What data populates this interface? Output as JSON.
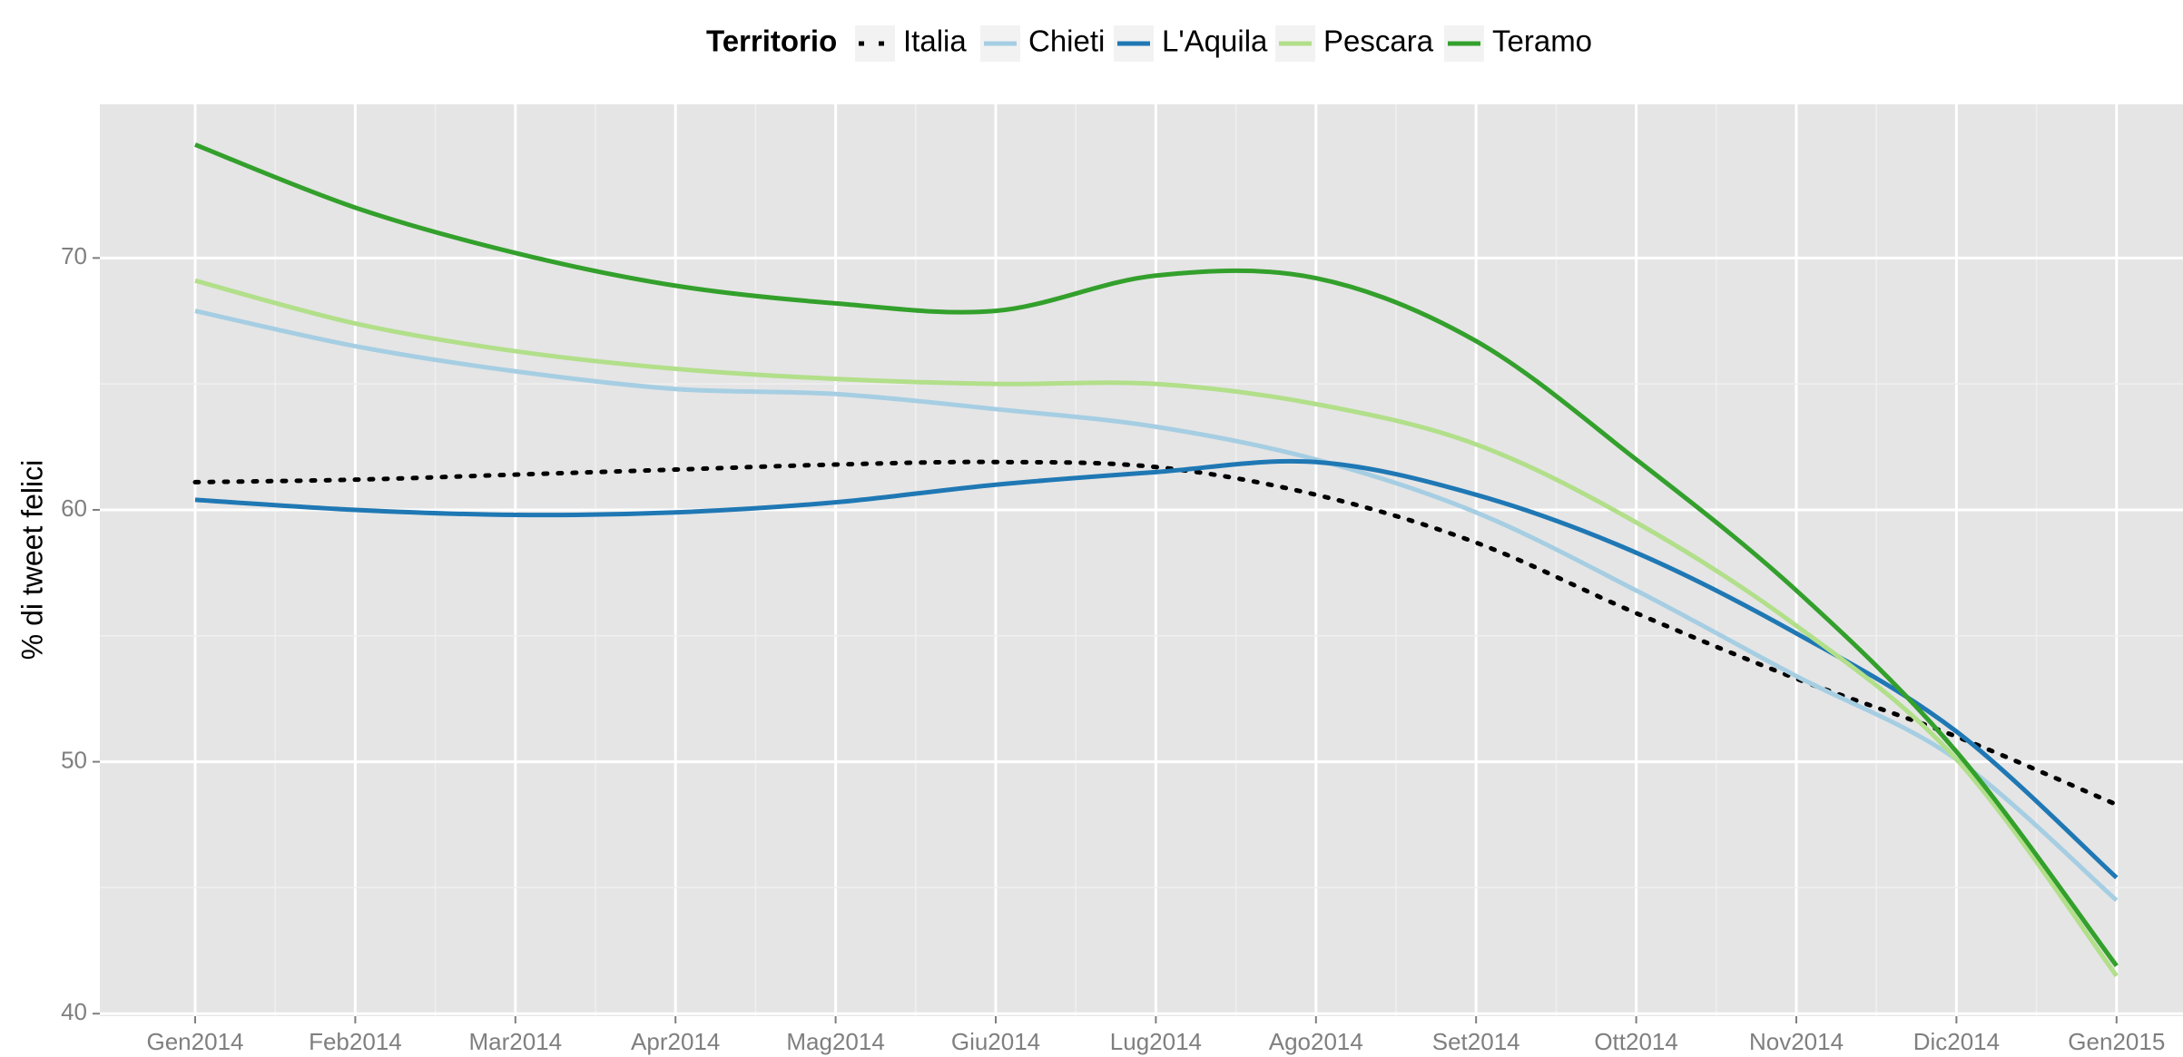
{
  "chart_data": {
    "type": "line",
    "y_label": "% di tweet felici",
    "legend_title": "Territorio",
    "legend": "top",
    "grid": true,
    "categories": [
      "Gen2014",
      "Feb2014",
      "Mar2014",
      "Apr2014",
      "Mag2014",
      "Giu2014",
      "Lug2014",
      "Ago2014",
      "Set2014",
      "Ott2014",
      "Nov2014",
      "Dic2014",
      "Gen2015"
    ],
    "ylim": [
      39.9,
      76.1
    ],
    "yticks": [
      40,
      50,
      60,
      70
    ],
    "series": [
      {
        "name": "Italia",
        "color": "#000000",
        "dash": "dotted",
        "values": [
          61.1,
          61.2,
          61.4,
          61.6,
          61.8,
          61.9,
          61.7,
          60.6,
          58.7,
          55.9,
          53.3,
          51.0,
          48.3
        ]
      },
      {
        "name": "Chieti",
        "color": "#a6cee3",
        "values": [
          67.9,
          66.5,
          65.5,
          64.8,
          64.6,
          64.0,
          63.3,
          62.0,
          59.9,
          56.8,
          53.4,
          50.1,
          44.5
        ]
      },
      {
        "name": "L'Aquila",
        "color": "#1f78b4",
        "values": [
          60.4,
          60.0,
          59.8,
          59.9,
          60.3,
          61.0,
          61.5,
          61.9,
          60.6,
          58.3,
          55.1,
          51.2,
          45.4
        ]
      },
      {
        "name": "Pescara",
        "color": "#b2df8a",
        "values": [
          69.1,
          67.4,
          66.3,
          65.6,
          65.2,
          65.0,
          65.0,
          64.2,
          62.6,
          59.5,
          55.4,
          50.1,
          41.5
        ]
      },
      {
        "name": "Teramo",
        "color": "#33a02c",
        "values": [
          74.5,
          72.0,
          70.2,
          68.9,
          68.2,
          67.9,
          69.3,
          69.2,
          66.7,
          62.0,
          56.8,
          50.4,
          41.9
        ]
      }
    ]
  }
}
